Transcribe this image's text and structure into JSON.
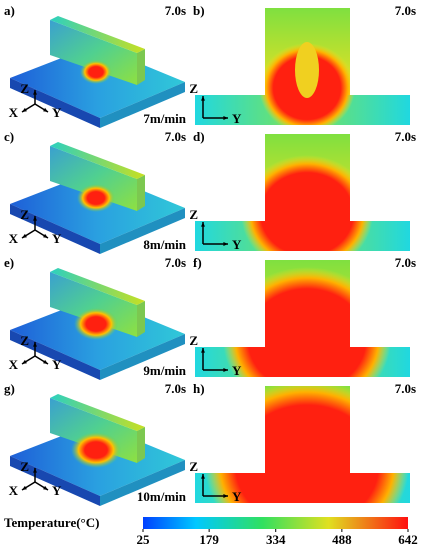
{
  "panels": [
    {
      "left": {
        "label": "a)",
        "time": "7.0s",
        "speed": "7m/min",
        "axes": [
          "Z",
          "X",
          "Y"
        ]
      },
      "right": {
        "label": "b)",
        "time": "7.0s",
        "axes": [
          "Z",
          "Y"
        ]
      }
    },
    {
      "left": {
        "label": "c)",
        "time": "7.0s",
        "speed": "8m/min",
        "axes": [
          "Z",
          "X",
          "Y"
        ]
      },
      "right": {
        "label": "d)",
        "time": "7.0s",
        "axes": [
          "Z",
          "Y"
        ]
      }
    },
    {
      "left": {
        "label": "e)",
        "time": "7.0s",
        "speed": "9m/min",
        "axes": [
          "Z",
          "X",
          "Y"
        ]
      },
      "right": {
        "label": "f)",
        "time": "7.0s",
        "axes": [
          "Z",
          "Y"
        ]
      }
    },
    {
      "left": {
        "label": "g)",
        "time": "7.0s",
        "speed": "10m/min",
        "axes": [
          "Z",
          "X",
          "Y"
        ]
      },
      "right": {
        "label": "h)",
        "time": "7.0s",
        "axes": [
          "Z",
          "Y"
        ]
      }
    }
  ],
  "colorbar": {
    "title": "Temperature(°C)",
    "range": [
      25,
      642
    ],
    "ticks": [
      25,
      179,
      334,
      488,
      642
    ]
  }
}
